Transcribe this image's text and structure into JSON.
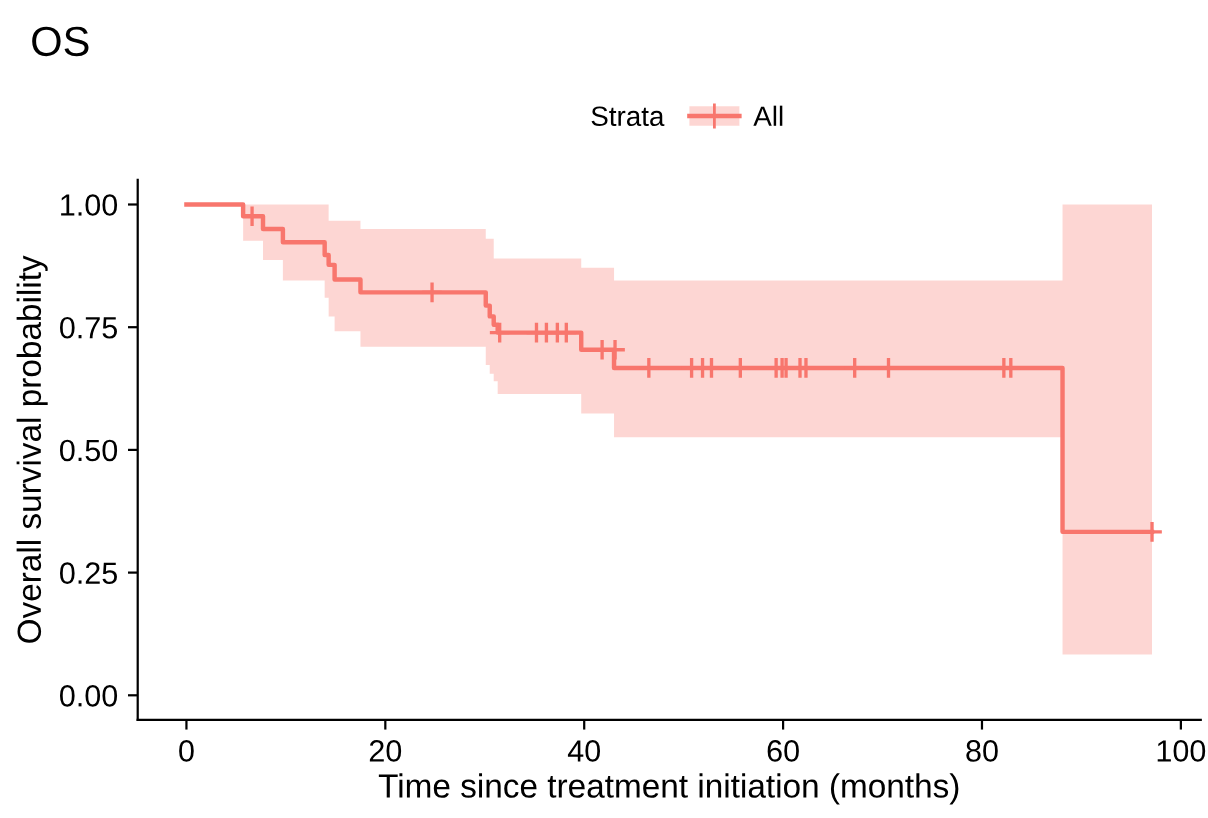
{
  "chart_data": {
    "type": "step",
    "title": "OS",
    "xlabel": "Time since treatment initiation (months)",
    "ylabel": "Overall survival probability",
    "legend_title": "Strata",
    "legend": "top",
    "series": [
      {
        "name": "All",
        "color": "#f8766d",
        "x": [
          0,
          5.7,
          7.7,
          9.7,
          13.9,
          14.3,
          14.9,
          17.5,
          30.1,
          30.5,
          30.9,
          31.3,
          39.7,
          43.0,
          88.1,
          97.1
        ],
        "values": [
          1.0,
          0.976,
          0.95,
          0.923,
          0.897,
          0.877,
          0.847,
          0.821,
          0.794,
          0.772,
          0.755,
          0.739,
          0.704,
          0.667,
          0.333,
          0.333
        ],
        "lower": [
          1.0,
          0.926,
          0.887,
          0.845,
          0.81,
          0.772,
          0.742,
          0.71,
          0.673,
          0.655,
          0.64,
          0.614,
          0.574,
          0.526,
          0.083,
          0.083
        ],
        "upper": [
          1.0,
          1.0,
          1.0,
          1.0,
          1.0,
          0.967,
          0.967,
          0.95,
          0.93,
          0.93,
          0.89,
          0.89,
          0.871,
          0.845,
          1.0,
          1.0
        ]
      },
      {
        "type": "scatter",
        "color": "#f8766d",
        "marker": "cross",
        "x": [
          6.6,
          24.7,
          31.5,
          35.2,
          36.2,
          37.3,
          38.2,
          41.8,
          43.1,
          46.5,
          50.8,
          51.9,
          52.8,
          55.7,
          59.3,
          59.9,
          60.3,
          61.7,
          62.3,
          67.2,
          70.6,
          82.2,
          82.9,
          97.1
        ],
        "values": [
          0.976,
          0.821,
          0.739,
          0.739,
          0.739,
          0.739,
          0.739,
          0.704,
          0.704,
          0.667,
          0.667,
          0.667,
          0.667,
          0.667,
          0.667,
          0.667,
          0.667,
          0.667,
          0.667,
          0.667,
          0.667,
          0.667,
          0.667,
          0.333
        ]
      }
    ],
    "xlim": [
      -4.9,
      102
    ],
    "xticks": [
      0,
      20,
      40,
      60,
      80,
      100
    ],
    "ylim": [
      -0.05,
      1.05
    ],
    "yticks": [
      {
        "value": 0,
        "label": "0.00"
      },
      {
        "value": 0.25,
        "label": "0.25"
      },
      {
        "value": 0.5,
        "label": "0.50"
      },
      {
        "value": 0.75,
        "label": "0.75"
      },
      {
        "value": 1,
        "label": "1.00"
      }
    ],
    "grid": false
  }
}
